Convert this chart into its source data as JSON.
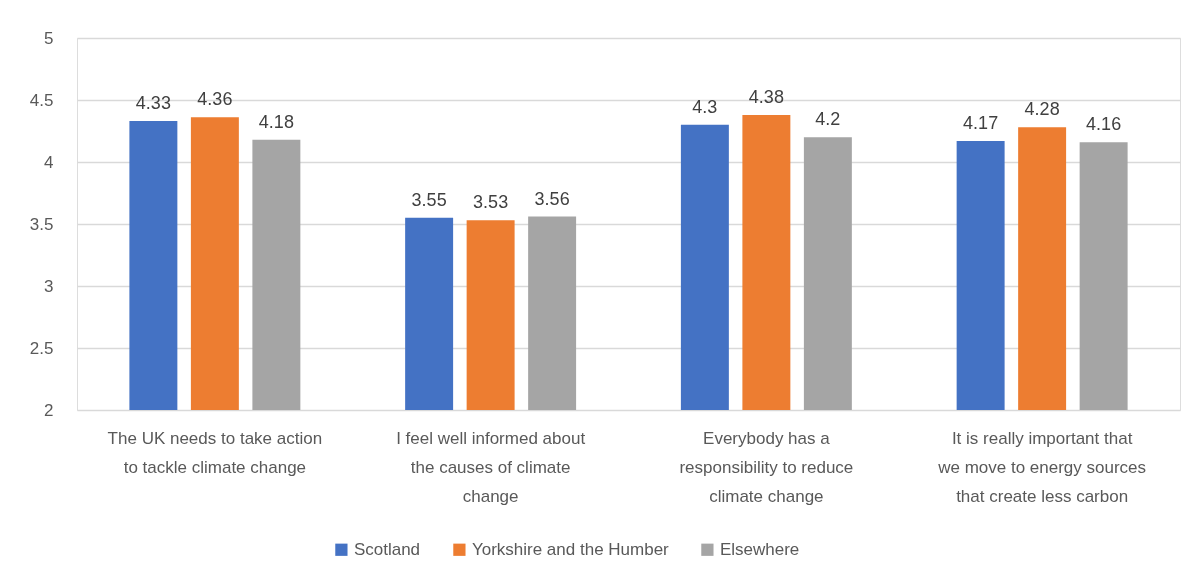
{
  "chart_data": {
    "type": "bar",
    "categories": [
      "The UK needs to take action to tackle climate change",
      "I feel well informed about the causes of climate change",
      "Everybody has a responsibility to reduce climate change",
      "It is really important that we move to energy sources that create less carbon"
    ],
    "series": [
      {
        "name": "Scotland",
        "color": "#4472c4",
        "values": [
          4.33,
          3.55,
          4.3,
          4.17
        ]
      },
      {
        "name": "Yorkshire and the Humber",
        "color": "#ed7d31",
        "values": [
          4.36,
          3.53,
          4.38,
          4.28
        ]
      },
      {
        "name": "Elsewhere",
        "color": "#a5a5a5",
        "values": [
          4.18,
          3.56,
          4.2,
          4.16
        ]
      }
    ],
    "ylim": [
      2,
      5
    ],
    "yticks": [
      2,
      2.5,
      3,
      3.5,
      4,
      4.5,
      5
    ],
    "grid": "y",
    "legend": "bottom",
    "data_labels": true
  }
}
